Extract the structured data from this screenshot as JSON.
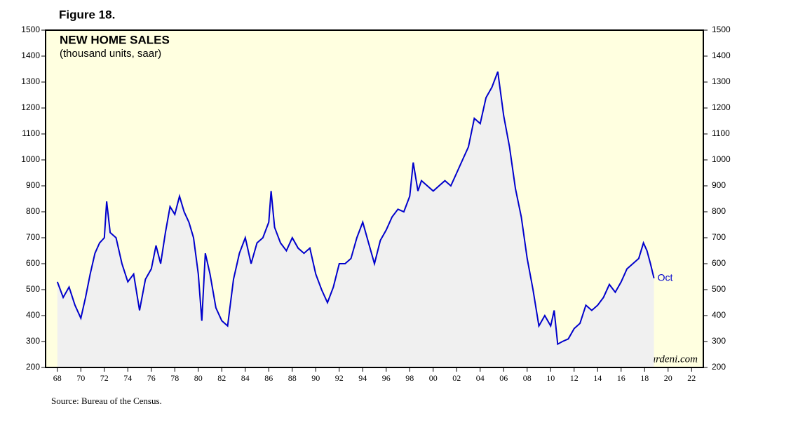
{
  "chart_data": {
    "type": "area-line",
    "figure_label": "Figure 18.",
    "title": "NEW HOME SALES",
    "subtitle": "(thousand units, saar)",
    "end_label": "Oct",
    "watermark": "yardeni.com",
    "source": "Source: Bureau of the Census.",
    "line_color": "#0000cc",
    "area_color": "#f0f0f0",
    "background_color": "#ffffe0",
    "xlim": [
      1967,
      2023
    ],
    "xticks": [
      {
        "value": 1968,
        "label": "68"
      },
      {
        "value": 1970,
        "label": "70"
      },
      {
        "value": 1972,
        "label": "72"
      },
      {
        "value": 1974,
        "label": "74"
      },
      {
        "value": 1976,
        "label": "76"
      },
      {
        "value": 1978,
        "label": "78"
      },
      {
        "value": 1980,
        "label": "80"
      },
      {
        "value": 1982,
        "label": "82"
      },
      {
        "value": 1984,
        "label": "84"
      },
      {
        "value": 1986,
        "label": "86"
      },
      {
        "value": 1988,
        "label": "88"
      },
      {
        "value": 1990,
        "label": "90"
      },
      {
        "value": 1992,
        "label": "92"
      },
      {
        "value": 1994,
        "label": "94"
      },
      {
        "value": 1996,
        "label": "96"
      },
      {
        "value": 1998,
        "label": "98"
      },
      {
        "value": 2000,
        "label": "00"
      },
      {
        "value": 2002,
        "label": "02"
      },
      {
        "value": 2004,
        "label": "04"
      },
      {
        "value": 2006,
        "label": "06"
      },
      {
        "value": 2008,
        "label": "08"
      },
      {
        "value": 2010,
        "label": "10"
      },
      {
        "value": 2012,
        "label": "12"
      },
      {
        "value": 2014,
        "label": "14"
      },
      {
        "value": 2016,
        "label": "16"
      },
      {
        "value": 2018,
        "label": "18"
      },
      {
        "value": 2020,
        "label": "20"
      },
      {
        "value": 2022,
        "label": "22"
      }
    ],
    "ylim": [
      200,
      1500
    ],
    "yticks": [
      200,
      300,
      400,
      500,
      600,
      700,
      800,
      900,
      1000,
      1100,
      1200,
      1300,
      1400,
      1500
    ],
    "x": [
      1968.0,
      1968.5,
      1969.0,
      1969.5,
      1970.0,
      1970.4,
      1970.8,
      1971.2,
      1971.6,
      1972.0,
      1972.2,
      1972.5,
      1973.0,
      1973.5,
      1974.0,
      1974.5,
      1975.0,
      1975.5,
      1976.0,
      1976.4,
      1976.8,
      1977.2,
      1977.6,
      1978.0,
      1978.4,
      1978.8,
      1979.2,
      1979.6,
      1980.0,
      1980.3,
      1980.6,
      1981.0,
      1981.5,
      1982.0,
      1982.5,
      1983.0,
      1983.5,
      1984.0,
      1984.5,
      1985.0,
      1985.5,
      1986.0,
      1986.2,
      1986.5,
      1987.0,
      1987.5,
      1988.0,
      1988.5,
      1989.0,
      1989.5,
      1990.0,
      1990.5,
      1991.0,
      1991.5,
      1992.0,
      1992.5,
      1993.0,
      1993.5,
      1994.0,
      1994.5,
      1995.0,
      1995.5,
      1996.0,
      1996.5,
      1997.0,
      1997.5,
      1998.0,
      1998.3,
      1998.7,
      1999.0,
      1999.5,
      2000.0,
      2000.5,
      2001.0,
      2001.5,
      2002.0,
      2002.5,
      2003.0,
      2003.5,
      2004.0,
      2004.5,
      2005.0,
      2005.5,
      2006.0,
      2006.5,
      2007.0,
      2007.5,
      2008.0,
      2008.5,
      2009.0,
      2009.5,
      2010.0,
      2010.3,
      2010.6,
      2011.0,
      2011.5,
      2012.0,
      2012.5,
      2013.0,
      2013.5,
      2014.0,
      2014.5,
      2015.0,
      2015.5,
      2016.0,
      2016.5,
      2017.0,
      2017.5,
      2017.9,
      2018.2,
      2018.5,
      2018.8
    ],
    "values": [
      530,
      470,
      510,
      440,
      390,
      470,
      560,
      640,
      680,
      700,
      840,
      720,
      700,
      600,
      530,
      560,
      420,
      540,
      580,
      670,
      600,
      720,
      820,
      790,
      860,
      800,
      760,
      700,
      560,
      380,
      640,
      560,
      430,
      380,
      360,
      540,
      640,
      700,
      600,
      680,
      700,
      760,
      880,
      740,
      680,
      650,
      700,
      660,
      640,
      660,
      560,
      500,
      450,
      510,
      600,
      600,
      620,
      700,
      760,
      680,
      600,
      690,
      730,
      780,
      810,
      800,
      860,
      990,
      880,
      920,
      900,
      880,
      900,
      920,
      900,
      950,
      1000,
      1050,
      1160,
      1140,
      1240,
      1280,
      1340,
      1170,
      1050,
      890,
      780,
      620,
      500,
      360,
      400,
      360,
      420,
      290,
      300,
      310,
      350,
      370,
      440,
      420,
      440,
      470,
      520,
      490,
      530,
      580,
      600,
      620,
      680,
      650,
      600,
      544
    ]
  }
}
